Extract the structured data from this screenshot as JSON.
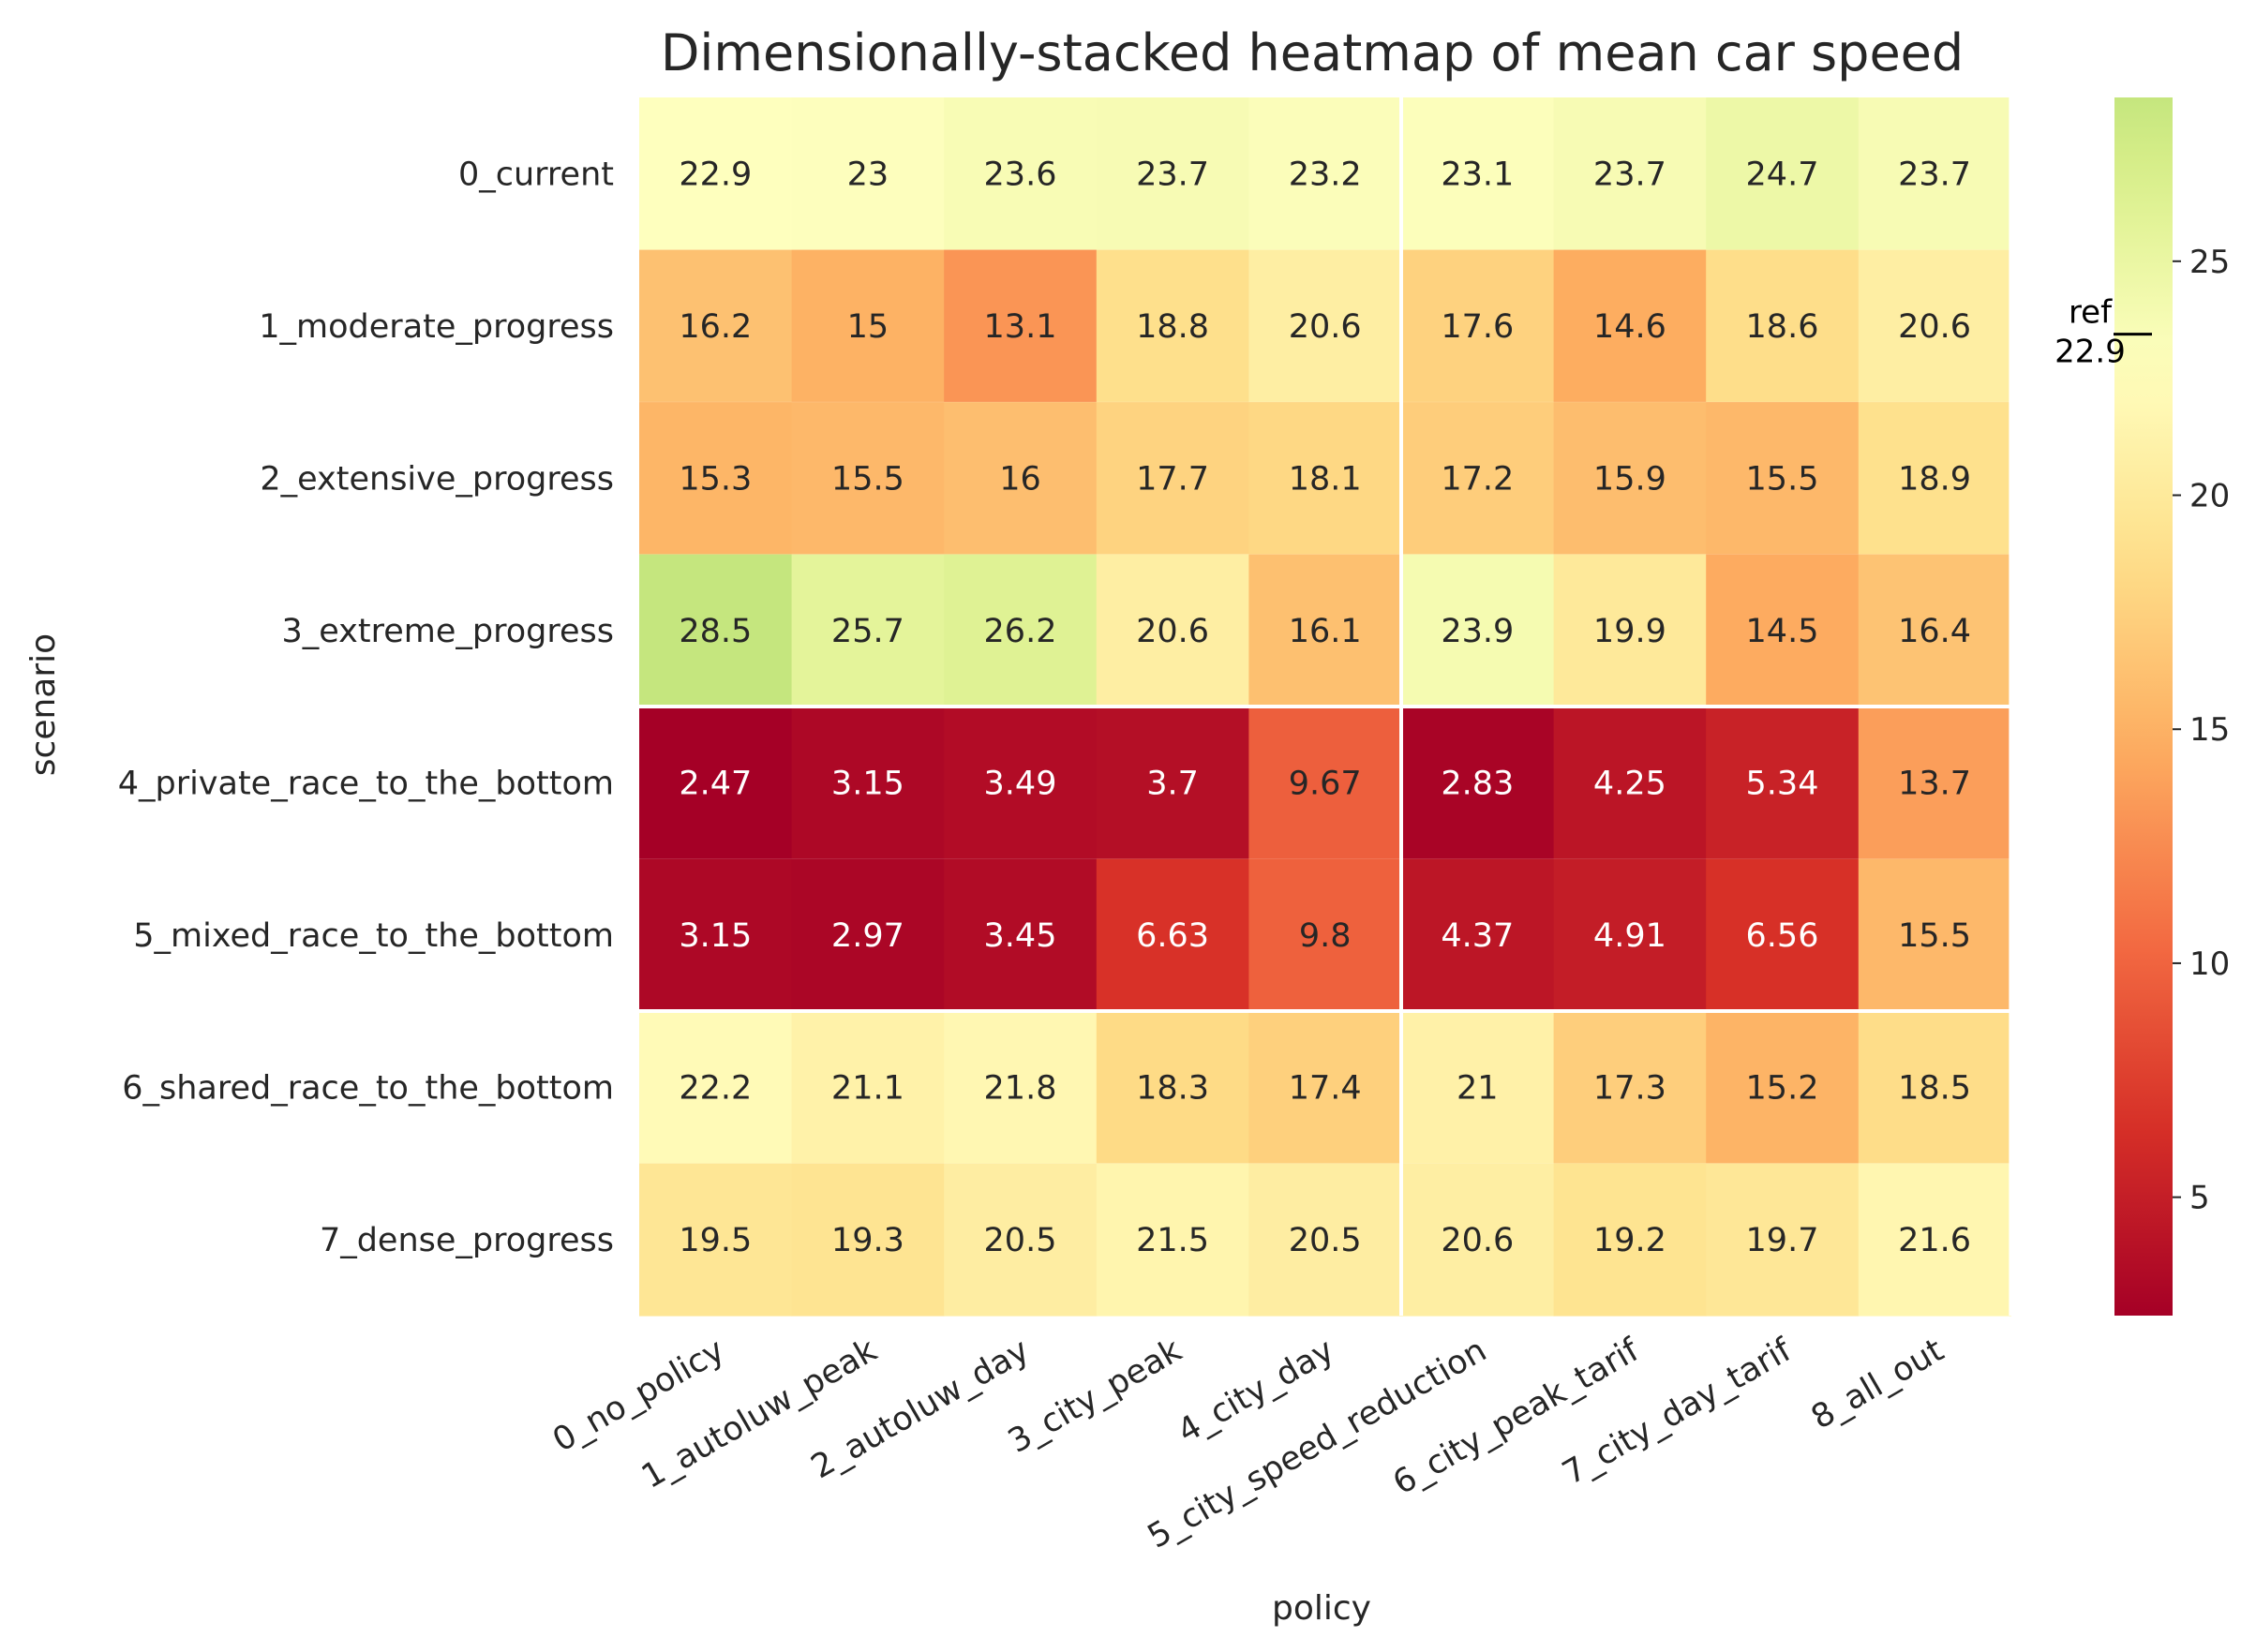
{
  "chart_data": {
    "type": "heatmap",
    "title": "Dimensionally-stacked heatmap of mean car speed",
    "xlabel": "policy",
    "ylabel": "scenario",
    "x_categories": [
      "0_no_policy",
      "1_autoluw_peak",
      "2_autoluw_day",
      "3_city_peak",
      "4_city_day",
      "5_city_speed_reduction",
      "6_city_peak_tarif",
      "7_city_day_tarif",
      "8_all_out"
    ],
    "y_categories": [
      "0_current",
      "1_moderate_progress",
      "2_extensive_progress",
      "3_extreme_progress",
      "4_private_race_to_the_bottom",
      "5_mixed_race_to_the_bottom",
      "6_shared_race_to_the_bottom",
      "7_dense_progress"
    ],
    "values": [
      [
        22.9,
        23,
        23.6,
        23.7,
        23.2,
        23.1,
        23.7,
        24.7,
        23.7
      ],
      [
        16.2,
        15,
        13.1,
        18.8,
        20.6,
        17.6,
        14.6,
        18.6,
        20.6
      ],
      [
        15.3,
        15.5,
        16,
        17.7,
        18.1,
        17.2,
        15.9,
        15.5,
        18.9
      ],
      [
        28.5,
        25.7,
        26.2,
        20.6,
        16.1,
        23.9,
        19.9,
        14.5,
        16.4
      ],
      [
        2.47,
        3.15,
        3.49,
        3.7,
        9.67,
        2.83,
        4.25,
        5.34,
        13.7
      ],
      [
        3.15,
        2.97,
        3.45,
        6.63,
        9.8,
        4.37,
        4.91,
        6.56,
        15.5
      ],
      [
        22.2,
        21.1,
        21.8,
        18.3,
        17.4,
        21,
        17.3,
        15.2,
        18.5
      ],
      [
        19.5,
        19.3,
        20.5,
        21.5,
        20.5,
        20.6,
        19.2,
        19.7,
        21.6
      ]
    ],
    "value_labels": [
      [
        "22.9",
        "23",
        "23.6",
        "23.7",
        "23.2",
        "23.1",
        "23.7",
        "24.7",
        "23.7"
      ],
      [
        "16.2",
        "15",
        "13.1",
        "18.8",
        "20.6",
        "17.6",
        "14.6",
        "18.6",
        "20.6"
      ],
      [
        "15.3",
        "15.5",
        "16",
        "17.7",
        "18.1",
        "17.2",
        "15.9",
        "15.5",
        "18.9"
      ],
      [
        "28.5",
        "25.7",
        "26.2",
        "20.6",
        "16.1",
        "23.9",
        "19.9",
        "14.5",
        "16.4"
      ],
      [
        "2.47",
        "3.15",
        "3.49",
        "3.7",
        "9.67",
        "2.83",
        "4.25",
        "5.34",
        "13.7"
      ],
      [
        "3.15",
        "2.97",
        "3.45",
        "6.63",
        "9.8",
        "4.37",
        "4.91",
        "6.56",
        "15.5"
      ],
      [
        "22.2",
        "21.1",
        "21.8",
        "18.3",
        "17.4",
        "21",
        "17.3",
        "15.2",
        "18.5"
      ],
      [
        "19.5",
        "19.3",
        "20.5",
        "21.5",
        "20.5",
        "20.6",
        "19.2",
        "19.7",
        "21.6"
      ]
    ],
    "colormap": "RdYlGn",
    "color_range": [
      2.47,
      28.5
    ],
    "colorbar_ticks": [
      5,
      10,
      15,
      20,
      25
    ],
    "colorbar_tick_labels": [
      "5",
      "10",
      "15",
      "20",
      "25"
    ],
    "reference": {
      "label": "ref",
      "value_label": "22.9",
      "value": 22.9
    },
    "group_dividers": {
      "after_rows": [
        3,
        5
      ],
      "after_cols": [
        4,
        8
      ]
    },
    "grid": false
  }
}
